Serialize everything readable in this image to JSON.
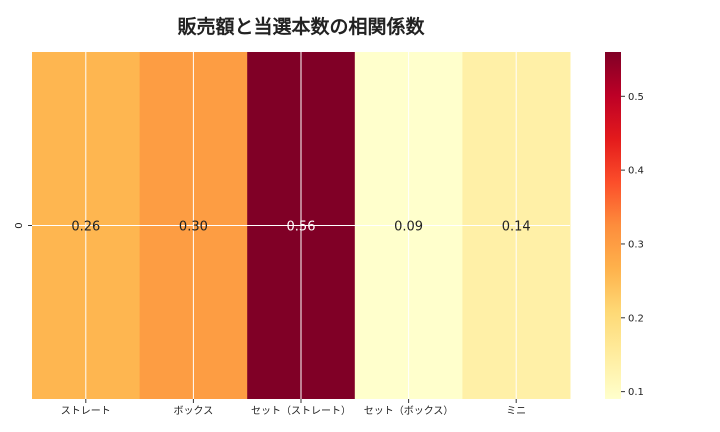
{
  "chart_data": {
    "type": "heatmap",
    "title": "販売額と当選本数の相関係数",
    "categories": [
      "ストレート",
      "ボックス",
      "セット（ストレート）",
      "セット（ボックス）",
      "ミニ"
    ],
    "rows": [
      "0"
    ],
    "values": [
      [
        0.26,
        0.3,
        0.56,
        0.09,
        0.14
      ]
    ],
    "value_labels": [
      "0.26",
      "0.30",
      "0.56",
      "0.09",
      "0.14"
    ],
    "colormap": "YlOrRd",
    "colorbar": {
      "range": [
        0.09,
        0.56
      ],
      "ticks": [
        0.1,
        0.2,
        0.3,
        0.4,
        0.5
      ],
      "tick_labels": [
        "0.1",
        "0.2",
        "0.3",
        "0.4",
        "0.5"
      ]
    },
    "grid": true
  }
}
